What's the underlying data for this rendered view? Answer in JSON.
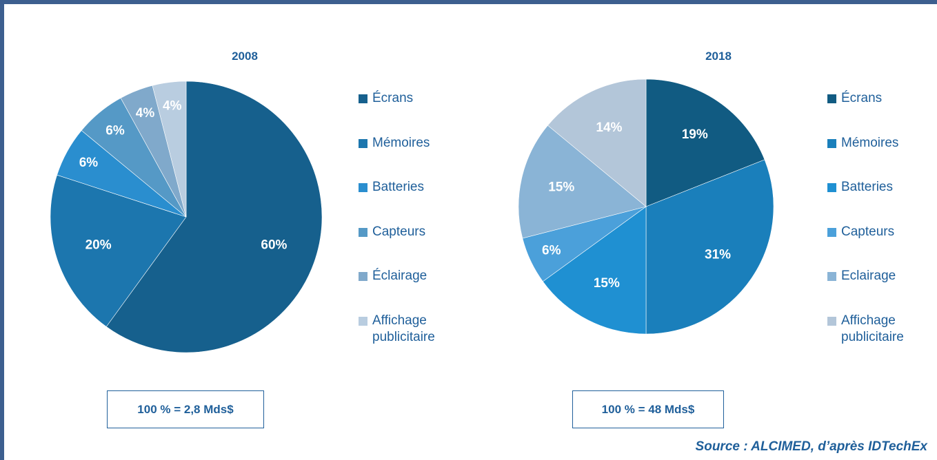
{
  "chart_data": [
    {
      "type": "pie",
      "title": "2008",
      "categories": [
        "Écrans",
        "Mémoires",
        "Batteries",
        "Capteurs",
        "Éclairage",
        "Affichage publicitaire"
      ],
      "values": [
        60,
        20,
        6,
        6,
        4,
        4
      ],
      "value_labels": [
        "60%",
        "20%",
        "6%",
        "6%",
        "4%",
        "4%"
      ],
      "colors": [
        "#16608d",
        "#1c76ae",
        "#2a8ecf",
        "#5599c6",
        "#80a9cb",
        "#b9cde0"
      ],
      "annotation": "100 % = 2,8 Mds$"
    },
    {
      "type": "pie",
      "title": "2018",
      "categories": [
        "Écrans",
        "Mémoires",
        "Batteries",
        "Capteurs",
        "Eclairage",
        "Affichage publicitaire"
      ],
      "values": [
        19,
        31,
        15,
        6,
        15,
        14
      ],
      "value_labels": [
        "19%",
        "31%",
        "15%",
        "6%",
        "15%",
        "14%"
      ],
      "colors": [
        "#115b82",
        "#1a7fbb",
        "#1f90d2",
        "#4ba0da",
        "#8ab4d6",
        "#b3c6d9"
      ],
      "annotation": "100 % = 48 Mds$"
    }
  ],
  "source": "Source : ALCIMED, d’après IDTechEx"
}
